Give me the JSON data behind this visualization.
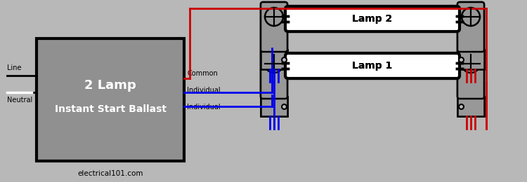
{
  "bg_color": "#b8b8b8",
  "ballast_face": "#909090",
  "ballast_edge": "#000000",
  "ballast_text1": "2 Lamp",
  "ballast_text2": "Instant Start Ballast",
  "watermark": "electrical101.com",
  "line_label": "Line",
  "neutral_label": "Neutral",
  "individual_label1": "Individual",
  "individual_label2": "Individual",
  "common_label": "Common",
  "lamp1_label": "Lamp 1",
  "lamp2_label": "Lamp 2",
  "blue": "#0000ee",
  "red": "#cc0000",
  "black": "#000000",
  "gray": "#a8a8a8",
  "white": "#ffffff",
  "lh_gray": "#989898",
  "text_color": "#000000",
  "lw_wire": 2.0,
  "lw_border": 2.0
}
